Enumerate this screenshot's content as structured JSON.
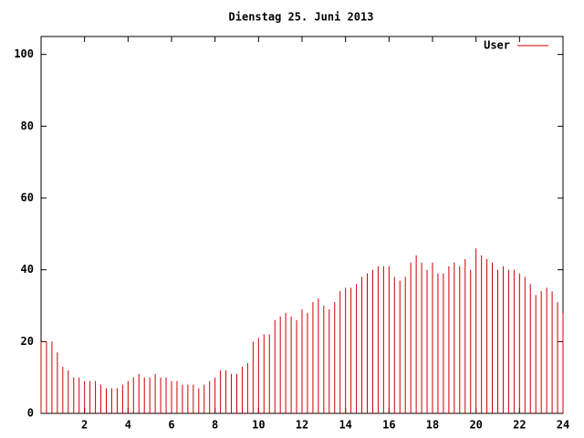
{
  "chart_data": {
    "type": "impulses",
    "title": "Dienstag 25. Juni 2013",
    "x": [
      0,
      0.25,
      0.5,
      0.75,
      1,
      1.25,
      1.5,
      1.75,
      2,
      2.25,
      2.5,
      2.75,
      3,
      3.25,
      3.5,
      3.75,
      4,
      4.25,
      4.5,
      4.75,
      5,
      5.25,
      5.5,
      5.75,
      6,
      6.25,
      6.5,
      6.75,
      7,
      7.25,
      7.5,
      7.75,
      8,
      8.25,
      8.5,
      8.75,
      9,
      9.25,
      9.5,
      9.75,
      10,
      10.25,
      10.5,
      10.75,
      11,
      11.25,
      11.5,
      11.75,
      12,
      12.25,
      12.5,
      12.75,
      13,
      13.25,
      13.5,
      13.75,
      14,
      14.25,
      14.5,
      14.75,
      15,
      15.25,
      15.5,
      15.75,
      16,
      16.25,
      16.5,
      16.75,
      17,
      17.25,
      17.5,
      17.75,
      18,
      18.25,
      18.5,
      18.75,
      19,
      19.25,
      19.5,
      19.75,
      20,
      20.25,
      20.5,
      20.75,
      21,
      21.25,
      21.5,
      21.75,
      22,
      22.25,
      22.5,
      22.75,
      23,
      23.25,
      23.5,
      23.75,
      24
    ],
    "series": [
      {
        "name": "User",
        "color": "#cc0000",
        "values": [
          20,
          20,
          20,
          17,
          13,
          12,
          10,
          10,
          9,
          9,
          9,
          8,
          7,
          7,
          7,
          8,
          9,
          10,
          11,
          10,
          10,
          11,
          10,
          10,
          9,
          9,
          8,
          8,
          8,
          7,
          8,
          9,
          10,
          12,
          12,
          11,
          11,
          13,
          14,
          20,
          21,
          22,
          22,
          26,
          27,
          28,
          27,
          26,
          29,
          28,
          31,
          32,
          30,
          29,
          31,
          34,
          35,
          35,
          36,
          38,
          39,
          40,
          41,
          41,
          41,
          38,
          37,
          38,
          42,
          44,
          42,
          40,
          42,
          39,
          39,
          41,
          42,
          41,
          43,
          40,
          46,
          44,
          43,
          42,
          40,
          41,
          40,
          40,
          39,
          38,
          36,
          33,
          34,
          35,
          34,
          31,
          28
        ]
      }
    ],
    "xlim": [
      0,
      24
    ],
    "xticks": [
      2,
      4,
      6,
      8,
      10,
      12,
      14,
      16,
      18,
      20,
      22,
      24
    ],
    "ylim": [
      0,
      105
    ],
    "yticks": [
      0,
      20,
      40,
      60,
      80,
      100
    ],
    "legend": "upper right"
  }
}
